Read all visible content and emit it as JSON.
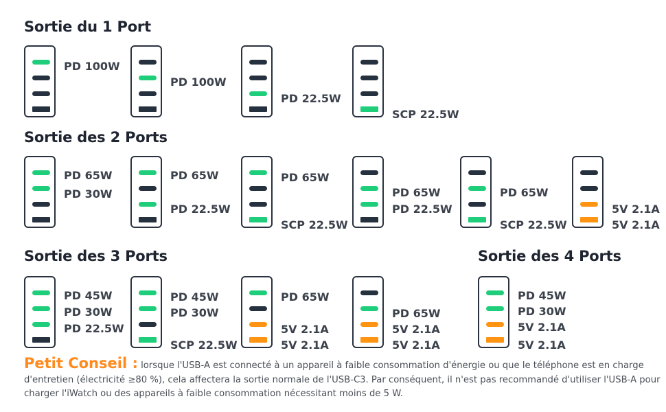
{
  "sections": [
    {
      "title": "Sortie du 1 Port"
    },
    {
      "title": "Sortie des 2 Ports"
    },
    {
      "title": "Sortie des 3 Ports"
    },
    {
      "title": "Sortie des 4 Ports"
    }
  ],
  "colors": {
    "active_usbc": "#1fce7a",
    "active_usba": "#ff9412",
    "inactive": "#263140",
    "tip_title": "#ff8a1e"
  },
  "chargers": [
    {
      "slots": [
        "green",
        "dark",
        "dark",
        "dark"
      ],
      "labels": [
        "PD 100W"
      ]
    },
    {
      "slots": [
        "dark",
        "green",
        "dark",
        "dark"
      ],
      "labels": [
        "PD 100W"
      ]
    },
    {
      "slots": [
        "dark",
        "dark",
        "green",
        "dark"
      ],
      "labels": [
        "PD 22.5W"
      ]
    },
    {
      "slots": [
        "dark",
        "dark",
        "dark",
        "green"
      ],
      "labels": [
        "SCP 22.5W"
      ]
    },
    {
      "slots": [
        "green",
        "green",
        "dark",
        "dark"
      ],
      "labels": [
        "PD 65W",
        "PD 30W"
      ]
    },
    {
      "slots": [
        "green",
        "dark",
        "green",
        "dark"
      ],
      "labels": [
        "PD 65W",
        "PD 22.5W"
      ]
    },
    {
      "slots": [
        "green",
        "dark",
        "dark",
        "green"
      ],
      "labels": [
        "PD 65W",
        "SCP 22.5W"
      ]
    },
    {
      "slots": [
        "dark",
        "green",
        "green",
        "dark"
      ],
      "labels": [
        "PD 65W",
        "PD 22.5W"
      ]
    },
    {
      "slots": [
        "dark",
        "green",
        "dark",
        "green"
      ],
      "labels": [
        "PD 65W",
        "SCP 22.5W"
      ]
    },
    {
      "slots": [
        "dark",
        "dark",
        "orange",
        "orange"
      ],
      "labels": [
        "5V 2.1A",
        "5V 2.1A"
      ]
    },
    {
      "slots": [
        "green",
        "green",
        "green",
        "dark"
      ],
      "labels": [
        "PD 45W",
        "PD 30W",
        "PD 22.5W"
      ]
    },
    {
      "slots": [
        "green",
        "green",
        "dark",
        "green"
      ],
      "labels": [
        "PD 45W",
        "PD 30W",
        "SCP 22.5W"
      ]
    },
    {
      "slots": [
        "green",
        "dark",
        "orange",
        "orange"
      ],
      "labels": [
        "PD 65W",
        "5V 2.1A",
        "5V 2.1A"
      ]
    },
    {
      "slots": [
        "dark",
        "green",
        "orange",
        "orange"
      ],
      "labels": [
        "PD 65W",
        "5V 2.1A",
        "5V 2.1A"
      ]
    },
    {
      "slots": [
        "green",
        "green",
        "orange",
        "orange"
      ],
      "labels": [
        "PD 45W",
        "PD 30W",
        "5V 2.1A",
        "5V 2.1A"
      ]
    }
  ],
  "tip": {
    "title": "Petit Conseil :",
    "text": "lorsque l'USB-A est connecté à un appareil à faible consommation d'énergie ou que le téléphone est en charge d'entretien (électricité ≥80 %), cela affectera la sortie normale de l'USB-C3. Par conséquent, il n'est pas recommandé d'utiliser l'USB-A pour charger l'iWatch ou des appareils à faible consommation nécessitant moins de 5 W."
  }
}
